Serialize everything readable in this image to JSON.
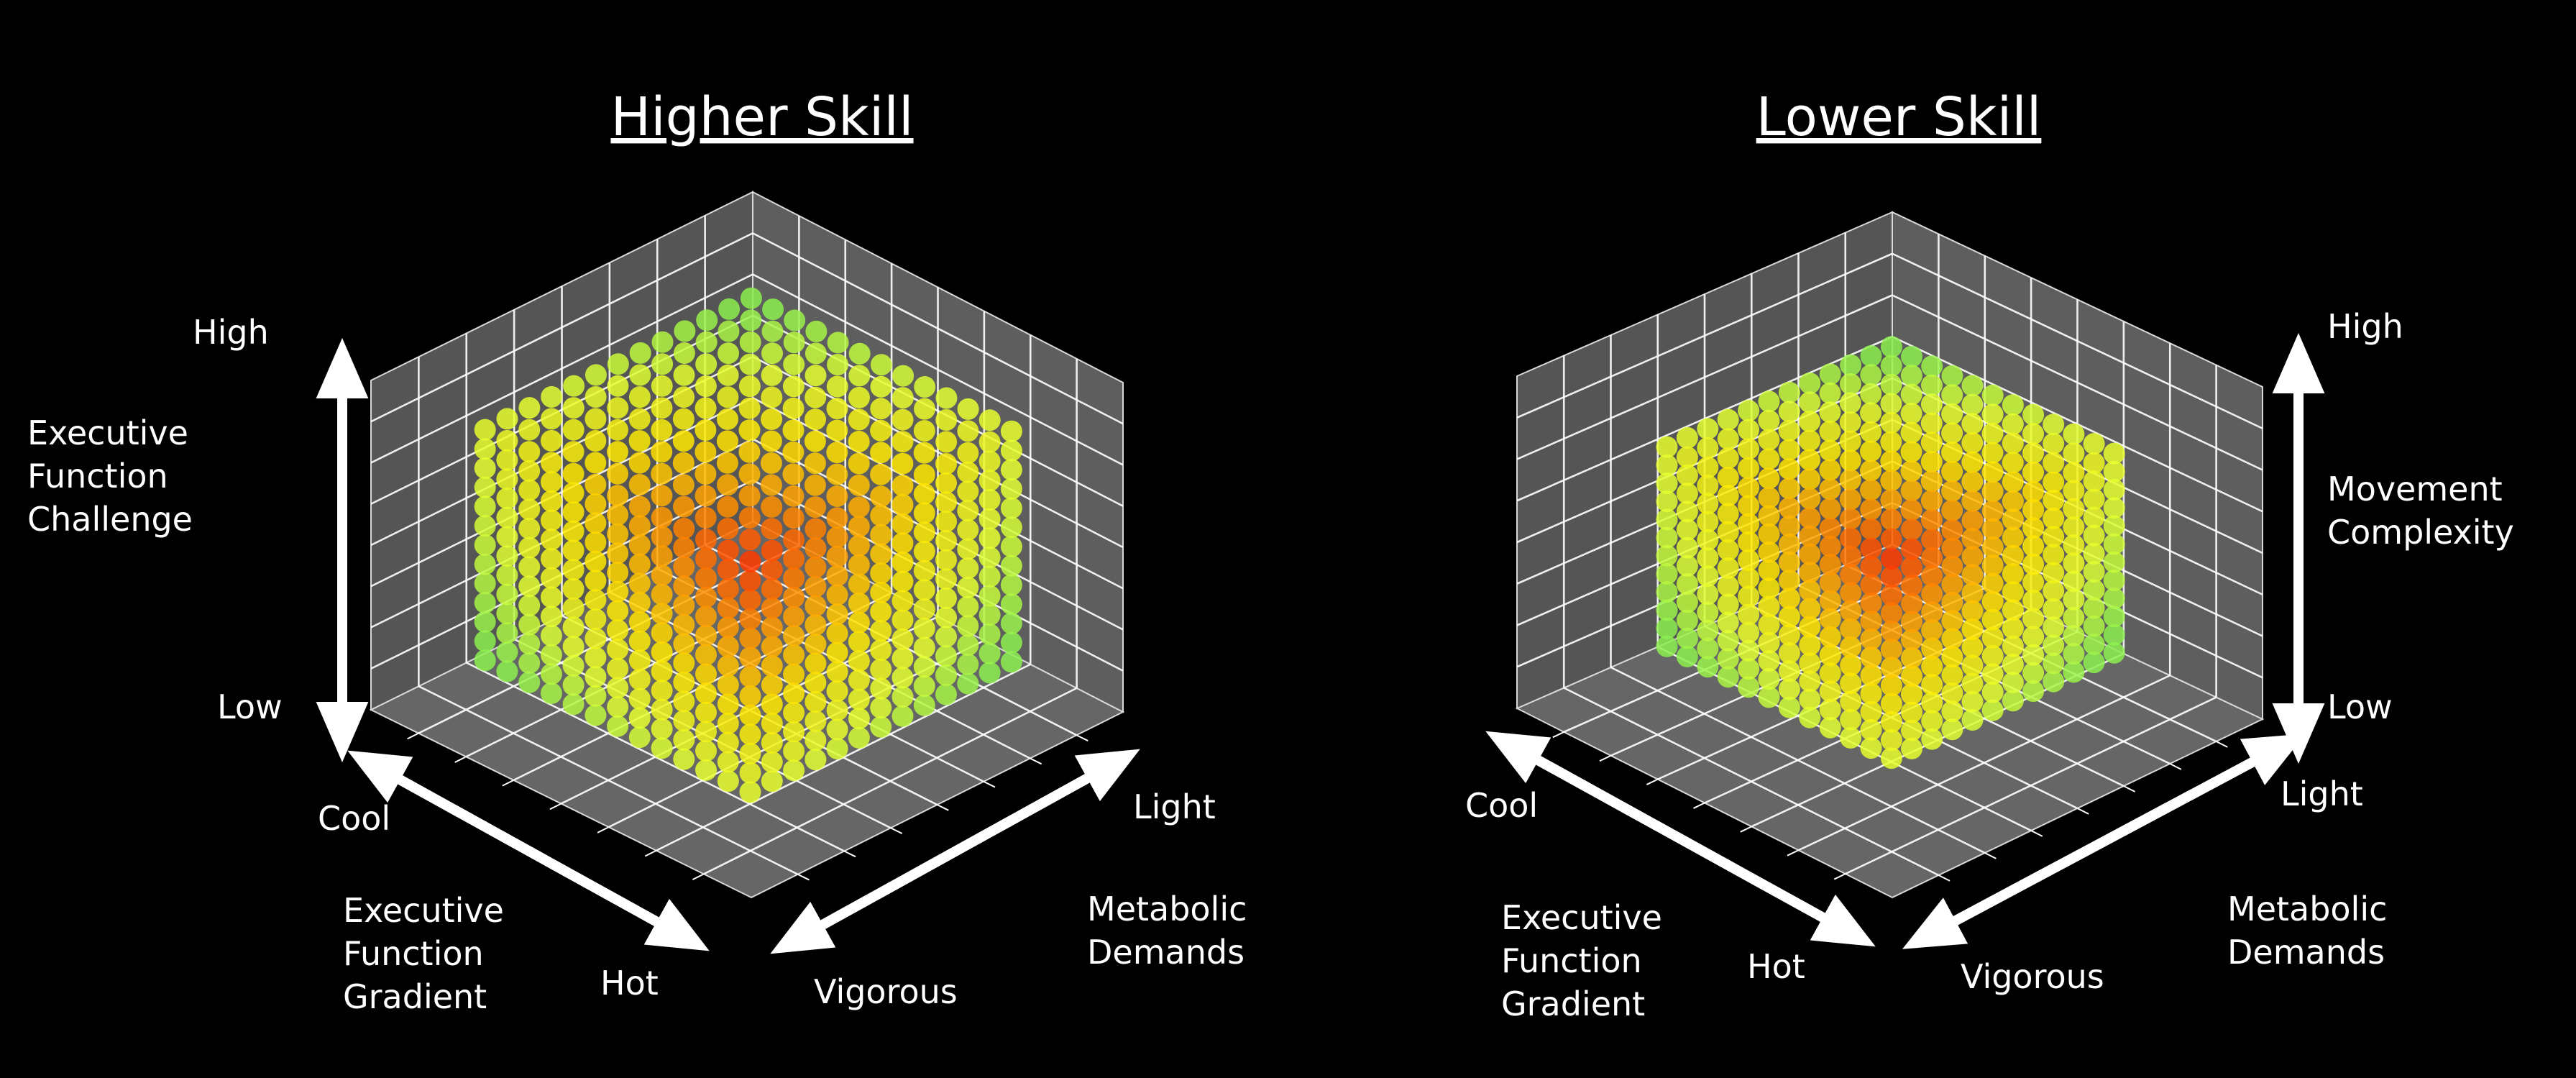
{
  "colors": {
    "background": "#000000",
    "pane": "#6b6b6b",
    "grid": "#ffffff",
    "arrow": "#ffffff",
    "colormap": [
      "#ff3a00",
      "#ff9a00",
      "#ffe800",
      "#e6ff30",
      "#8cf050"
    ]
  },
  "chart_data": [
    {
      "type": "scatter",
      "projection": "3d",
      "title": "Higher Skill",
      "axes": {
        "vertical": {
          "label": [
            "Executive",
            "Function",
            "Challenge"
          ],
          "low": "Low",
          "high": "High"
        },
        "left": {
          "label": [
            "Executive",
            "Function",
            "Gradient"
          ],
          "low": "Cool",
          "high": "Hot"
        },
        "right": {
          "label": [
            "Metabolic",
            "Demands"
          ],
          "low": "Light",
          "high": "Vigorous"
        }
      },
      "grid": true,
      "points": {
        "per_axis": 13,
        "extent": [
          0.15,
          0.85
        ],
        "coverage": "filled cube, visible faces"
      }
    },
    {
      "type": "scatter",
      "projection": "3d",
      "title": "Lower Skill",
      "axes": {
        "vertical": {
          "label": [
            "Movement",
            "Complexity"
          ],
          "low": "Low",
          "high": "High"
        },
        "left": {
          "label": [
            "Executive",
            "Function",
            "Gradient"
          ],
          "low": "Cool",
          "high": "Hot"
        },
        "right": {
          "label": [
            "Metabolic",
            "Demands"
          ],
          "low": "Light",
          "high": "Vigorous"
        }
      },
      "grid": true,
      "points": {
        "per_axis": 12,
        "extent": [
          0.2,
          0.8
        ],
        "coverage": "filled cube, visible faces"
      }
    }
  ]
}
